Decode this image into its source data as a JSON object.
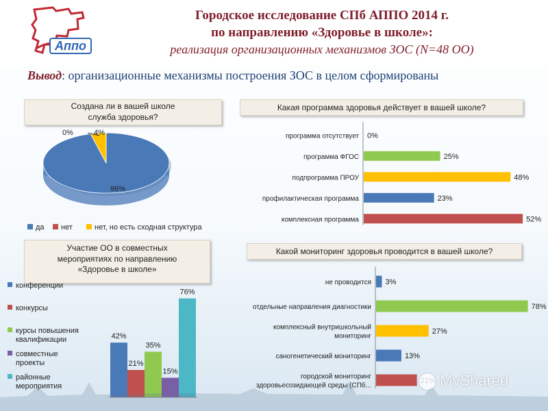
{
  "header": {
    "title_line1": "Городское исследование СПб АППО 2014 г.",
    "title_line2": "по направлению «Здоровье в школе»:",
    "subtitle": "реализация организационных механизмов ЗОС (N=48 ОО)",
    "logo_text": "Аппо"
  },
  "conclusion": {
    "label": "Вывод",
    "text": ": организационные механизмы построения ЗОС в целом сформированы"
  },
  "watermark": {
    "text": "MyShared"
  },
  "colors": {
    "blue": "#4a79b8",
    "red": "#c0504d",
    "green": "#8fc94f",
    "yellow": "#ffc000",
    "purple": "#7c5ba8",
    "teal": "#4cb7c5",
    "title": "#7f1d2a"
  },
  "chart_data": [
    {
      "type": "pie",
      "title_lines": [
        "Создана ли в вашей школе",
        "служба здоровья?"
      ],
      "slices": [
        {
          "label": "да",
          "value": 96,
          "display": "96%",
          "color": "#4a79b8"
        },
        {
          "label": "нет",
          "value": 0,
          "display": "0%",
          "color": "#c0504d"
        },
        {
          "label": "нет, но есть сходная структура",
          "value": 4,
          "display": "4%",
          "color": "#ffc000"
        }
      ],
      "legend_position": "bottom"
    },
    {
      "type": "bar",
      "orientation": "horizontal",
      "title": "Какая программа здоровья действует в вашей школе?",
      "categories": [
        "программа отсутствует",
        "программа ФГОС",
        "подпрограмма ПРОУ",
        "профилактическая программа",
        "комплексная программа"
      ],
      "values": [
        0,
        25,
        48,
        23,
        52
      ],
      "labels": [
        "0%",
        "25%",
        "48%",
        "23%",
        "52%"
      ],
      "colors": [
        "#4a79b8",
        "#8fc94f",
        "#ffc000",
        "#4a79b8",
        "#c0504d"
      ],
      "xlim": [
        0,
        56
      ]
    },
    {
      "type": "bar",
      "title_lines": [
        "Участие ОО в совместных",
        "мероприятиях по направлению",
        "«Здоровье в школе»"
      ],
      "series": [
        {
          "name": "конференции",
          "value": 42,
          "label": "42%",
          "color": "#4a79b8"
        },
        {
          "name": "конкурсы",
          "value": 21,
          "label": "21%",
          "color": "#c0504d"
        },
        {
          "name_lines": [
            "курсы повышения",
            "квалификации"
          ],
          "value": 35,
          "label": "35%",
          "color": "#8fc94f"
        },
        {
          "name_lines": [
            "совместные",
            "проекты"
          ],
          "value": 15,
          "label": "15%",
          "color": "#7c5ba8"
        },
        {
          "name_lines": [
            "районные",
            "мероприятия"
          ],
          "value": 76,
          "label": "76%",
          "color": "#4cb7c5"
        }
      ],
      "ylim": [
        0,
        80
      ],
      "legend_position": "left"
    },
    {
      "type": "bar",
      "orientation": "horizontal",
      "title": "Какой мониторинг здоровья проводится в вашей школе?",
      "categories": [
        [
          "не проводится"
        ],
        [
          "отдельные направления диагностики"
        ],
        [
          "комплексный внутришкольный",
          "мониторинг"
        ],
        [
          "саногенетический мониторинг"
        ],
        [
          "городской мониторинг",
          "здоровьесозидающей среды (СПб..."
        ]
      ],
      "values": [
        3,
        78,
        27,
        13,
        21
      ],
      "labels": [
        "3%",
        "78%",
        "27%",
        "13%",
        "21%"
      ],
      "colors": [
        "#4a79b8",
        "#8fc94f",
        "#ffc000",
        "#4a79b8",
        "#c0504d"
      ],
      "xlim": [
        0,
        82
      ]
    }
  ]
}
